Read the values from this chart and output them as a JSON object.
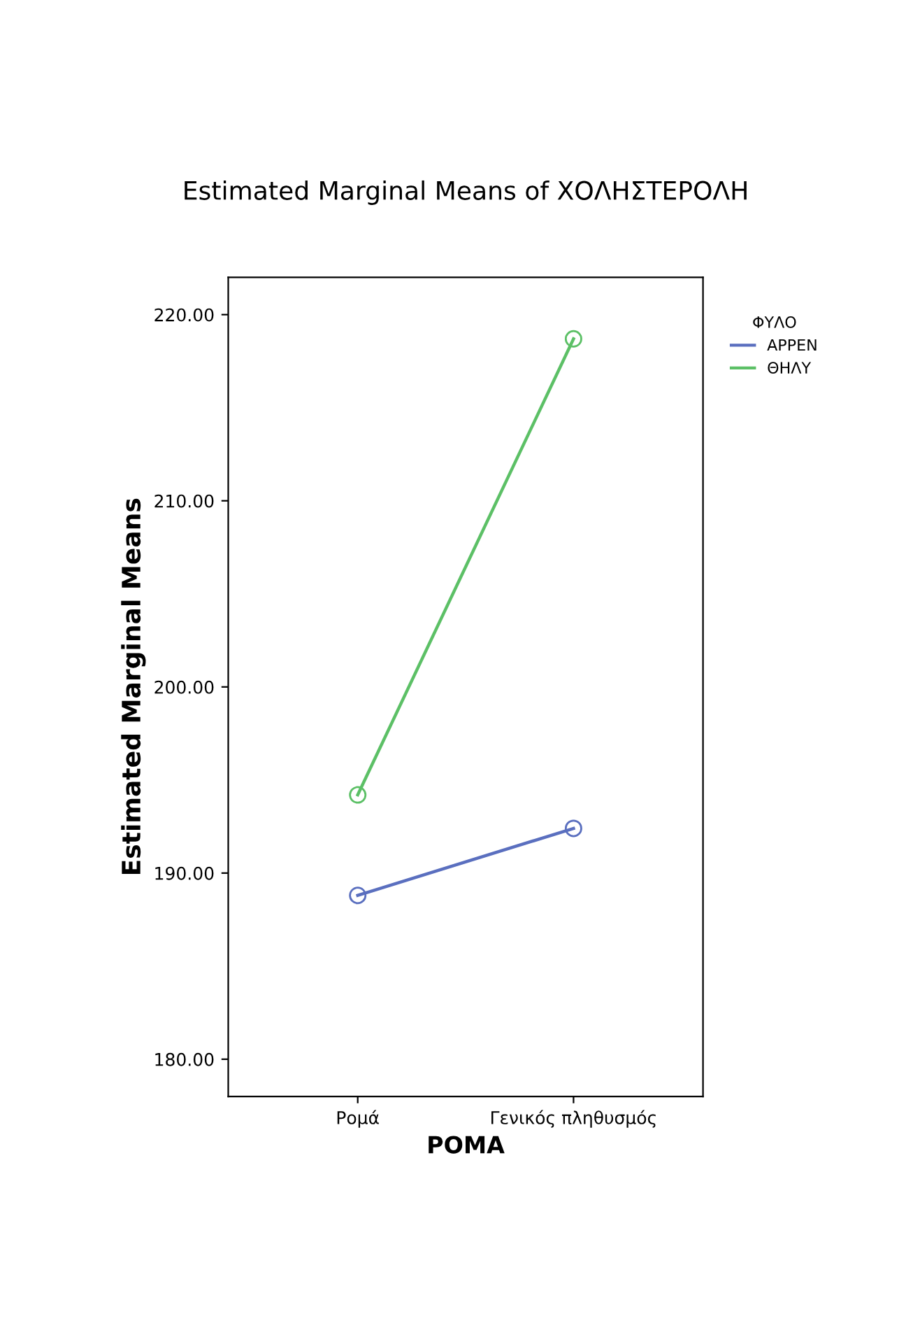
{
  "chart_data": {
    "type": "line",
    "title": "Estimated Marginal Means of ΧΟΛΗΣΤΕΡΟΛΗ",
    "xlabel": "ΡΟΜΑ",
    "ylabel": "Estimated Marginal Means",
    "legend_title": "ΦΥΛΟ",
    "categories": [
      "Ρομά",
      "Γενικός πληθυσμός"
    ],
    "series": [
      {
        "name": "ΑΡΡΕΝ",
        "color": "#5a6fbf",
        "values": [
          188.8,
          192.4
        ]
      },
      {
        "name": "ΘΗΛΥ",
        "color": "#5cc066",
        "values": [
          194.2,
          218.7
        ]
      }
    ],
    "ylim": [
      178,
      222
    ],
    "yticks": [
      {
        "value": 180,
        "label": "180.00"
      },
      {
        "value": 190,
        "label": "190.00"
      },
      {
        "value": 200,
        "label": "200.00"
      },
      {
        "value": 210,
        "label": "210.00"
      },
      {
        "value": 220,
        "label": "220.00"
      }
    ],
    "grid": false,
    "legend": "right",
    "marker": "circle",
    "line_style": "solid"
  }
}
